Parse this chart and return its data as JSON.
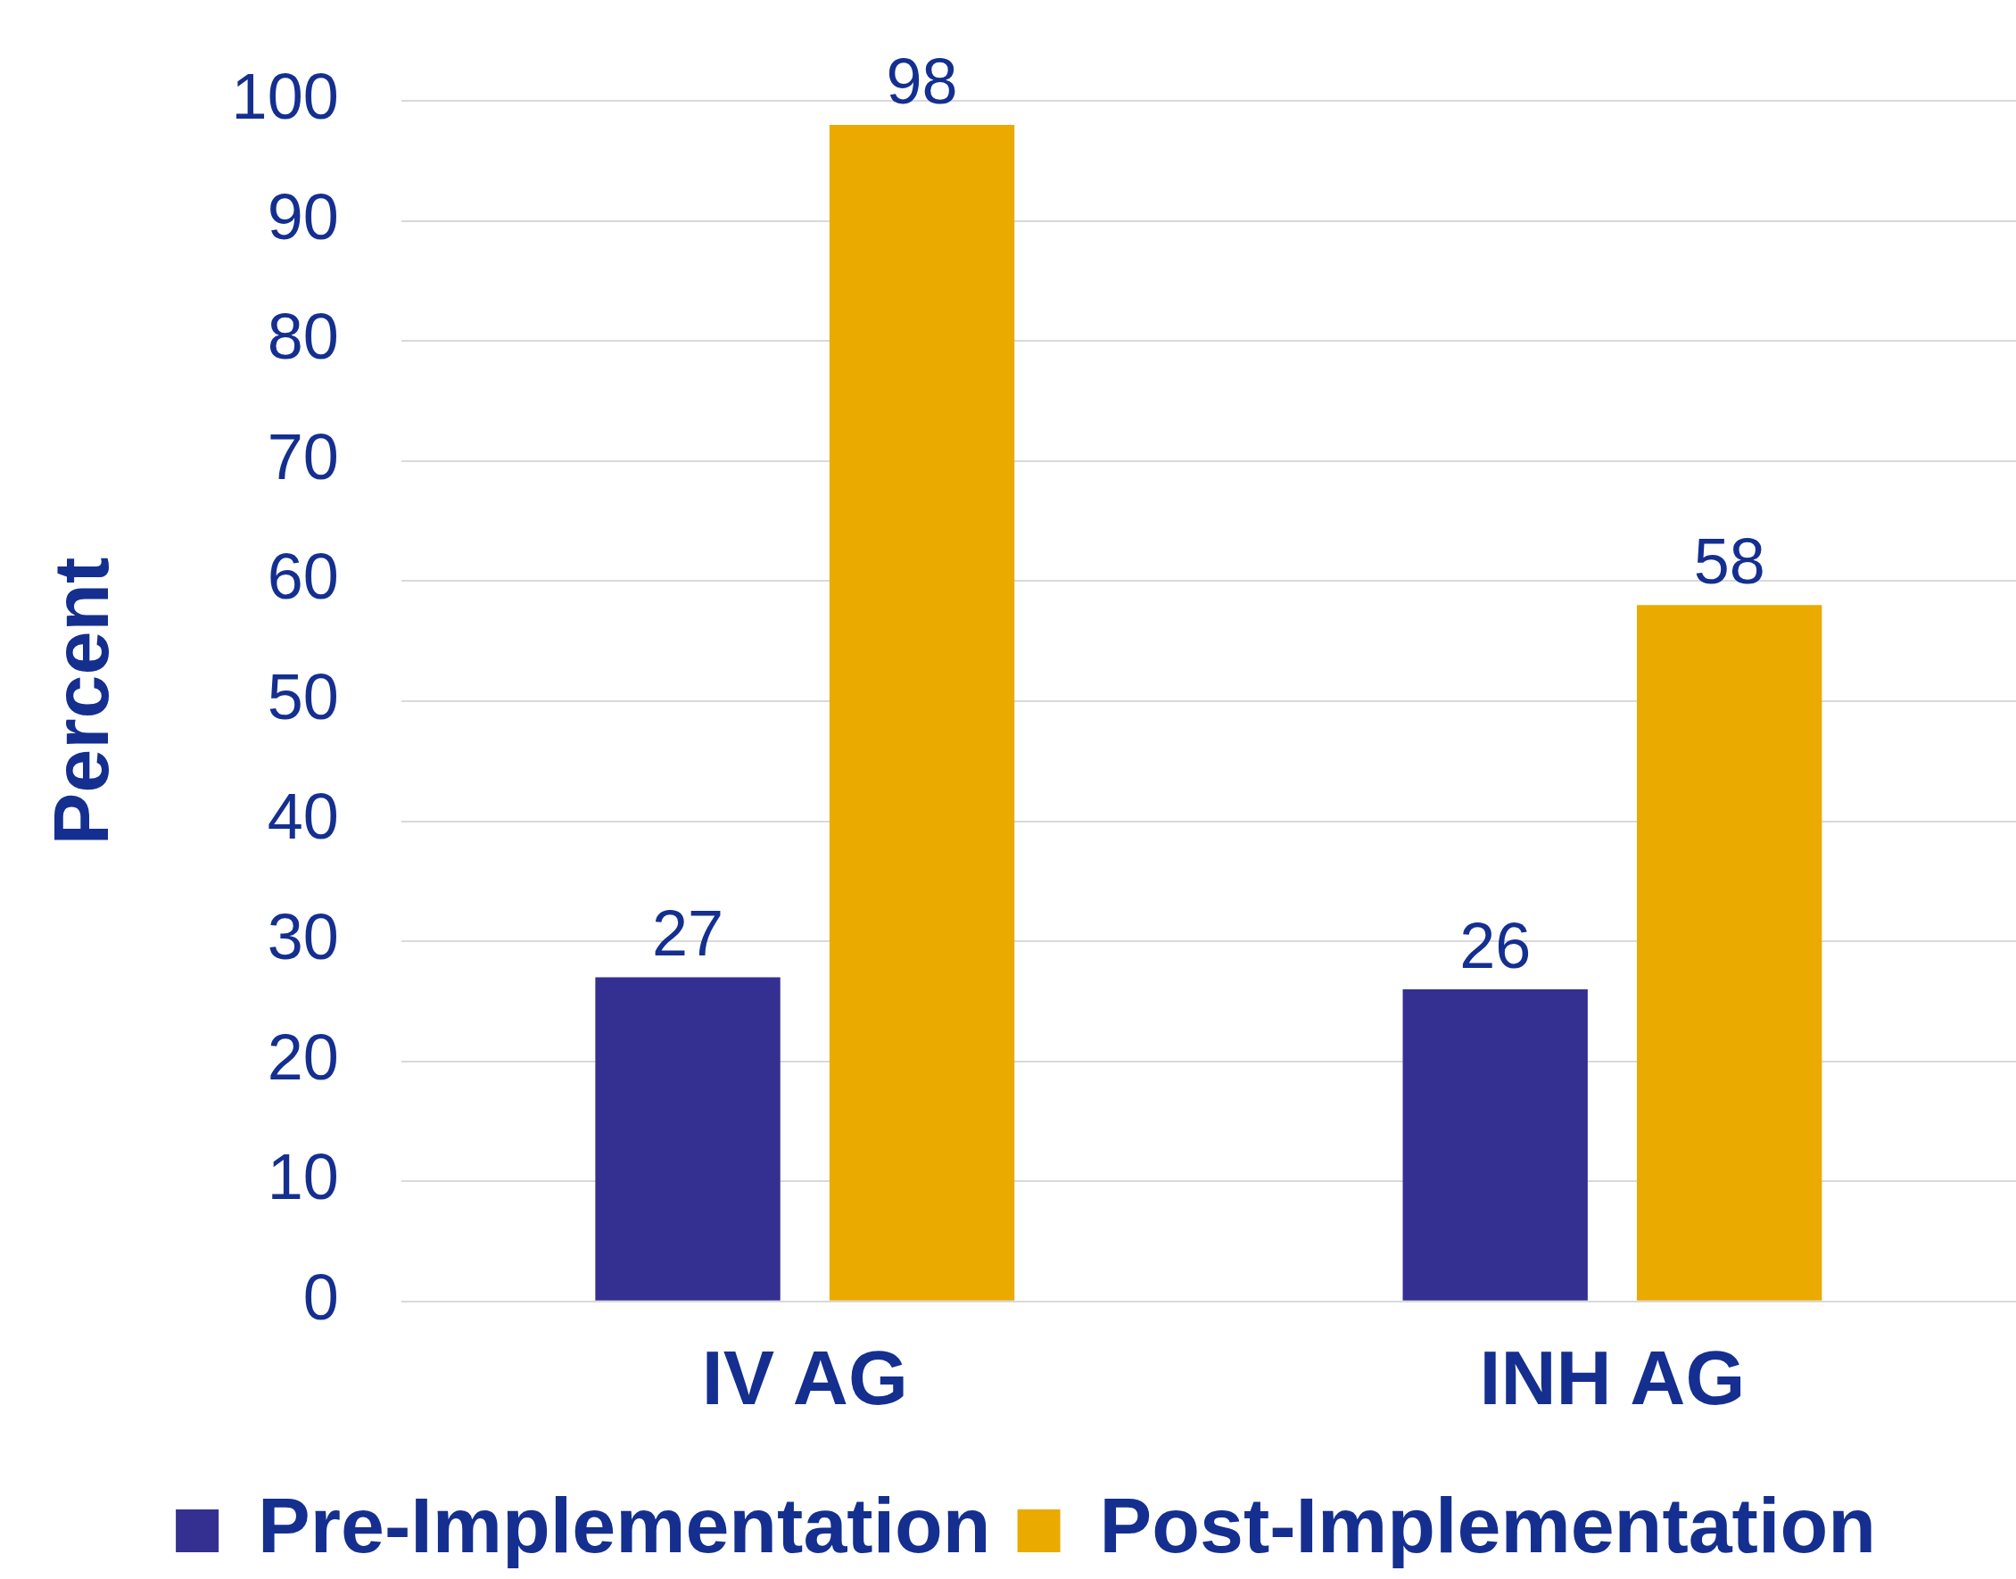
{
  "chart_data": {
    "type": "bar",
    "ylabel": "Percent",
    "categories": [
      "IV AG",
      "INH AG"
    ],
    "series": [
      {
        "name": "Pre-Implementation",
        "color": "#343092",
        "values": [
          27,
          26
        ]
      },
      {
        "name": "Post-Implementation",
        "color": "#ebaa00",
        "values": [
          98,
          58
        ]
      }
    ],
    "ylim": [
      0,
      100
    ],
    "yticks": [
      0,
      10,
      20,
      30,
      40,
      50,
      60,
      70,
      80,
      90,
      100
    ],
    "grid": "y",
    "legend": "bottom",
    "data_labels": true
  }
}
